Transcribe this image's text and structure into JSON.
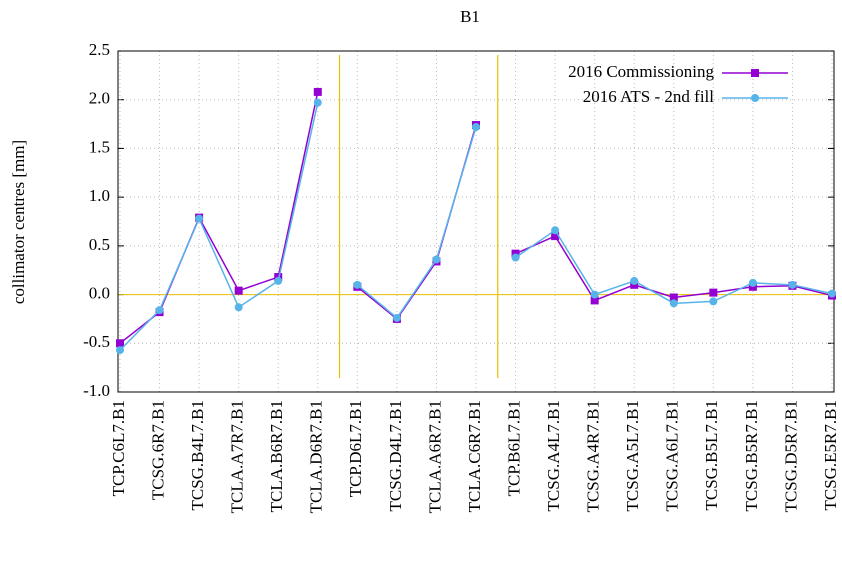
{
  "chart_data": {
    "type": "line",
    "title": "B1",
    "ylabel": "collimator centres [mm]",
    "categories": [
      "TCP.C6L7.B1",
      "TCSG.6R7.B1",
      "TCSG.B4L7.B1",
      "TCLA.A7R7.B1",
      "TCLA.B6R7.B1",
      "TCLA.D6R7.B1",
      "TCP.D6L7.B1",
      "TCSG.D4L7.B1",
      "TCLA.A6R7.B1",
      "TCLA.C6R7.B1",
      "TCP.B6L7.B1",
      "TCSG.A4L7.B1",
      "TCSG.A4R7.B1",
      "TCSG.A5L7.B1",
      "TCSG.A6L7.B1",
      "TCSG.B5L7.B1",
      "TCSG.B5R7.B1",
      "TCSG.D5R7.B1",
      "TCSG.E5R7.B1"
    ],
    "series": [
      {
        "name": "2016 Commissioning",
        "color": "#9400d3",
        "marker": "square",
        "values": [
          -0.5,
          -0.18,
          0.79,
          0.04,
          0.18,
          2.08,
          0.08,
          -0.25,
          0.34,
          1.74,
          0.42,
          0.6,
          -0.06,
          0.1,
          -0.03,
          0.02,
          0.08,
          0.09,
          -0.01
        ]
      },
      {
        "name": "2016 ATS - 2nd fill",
        "color": "#56b4e9",
        "marker": "circle",
        "values": [
          -0.57,
          -0.16,
          0.78,
          -0.13,
          0.14,
          1.97,
          0.1,
          -0.24,
          0.36,
          1.72,
          0.38,
          0.66,
          0.0,
          0.14,
          -0.09,
          -0.07,
          0.12,
          0.1,
          0.01
        ]
      }
    ],
    "breaks_after": [
      5,
      9
    ],
    "hline": 0,
    "ylim": [
      -1,
      2.5
    ],
    "yticks": [
      {
        "value": -1,
        "label": "-1.0"
      },
      {
        "value": -0.5,
        "label": "-0.5"
      },
      {
        "value": 0,
        "label": "0.0"
      },
      {
        "value": 0.5,
        "label": "0.5"
      },
      {
        "value": 1,
        "label": "1.0"
      },
      {
        "value": 1.5,
        "label": "1.5"
      },
      {
        "value": 2,
        "label": "2.0"
      },
      {
        "value": 2.5,
        "label": "2.5"
      }
    ],
    "grid": true,
    "legend": "top-right"
  }
}
